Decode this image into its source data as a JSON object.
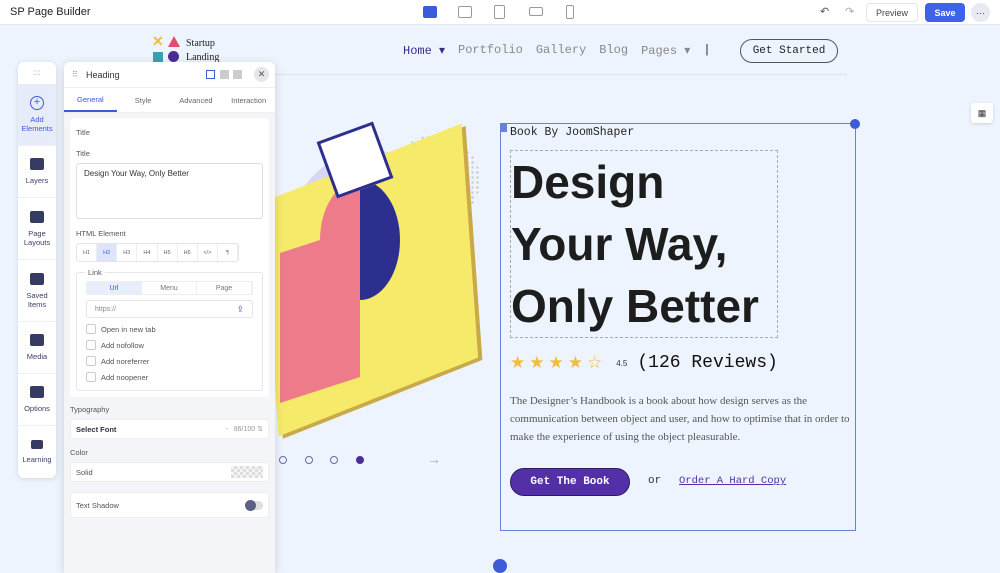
{
  "app": {
    "title": "SP Page Builder",
    "preview": "Preview",
    "save": "Save",
    "more": "···"
  },
  "devices": [
    "desktop",
    "tablet-landscape",
    "tablet",
    "mobile-landscape",
    "mobile"
  ],
  "site": {
    "logo": [
      "Startup",
      "Landing"
    ],
    "nav": [
      {
        "label": "Home ▾",
        "active": true
      },
      {
        "label": "Portfolio"
      },
      {
        "label": "Gallery"
      },
      {
        "label": "Blog"
      },
      {
        "label": "Pages ▾"
      }
    ],
    "divider": "|",
    "cta": "Get Started"
  },
  "sidebar": [
    {
      "label": "Add Elements",
      "icon": "plus-circle-icon",
      "active": true
    },
    {
      "label": "Layers",
      "icon": "layers-icon"
    },
    {
      "label": "Page Layouts",
      "icon": "layout-icon"
    },
    {
      "label": "Saved Items",
      "icon": "box-icon"
    },
    {
      "label": "Media",
      "icon": "media-icon"
    },
    {
      "label": "Options",
      "icon": "tools-icon"
    },
    {
      "label": "Learning",
      "icon": "book-icon"
    }
  ],
  "panel": {
    "title": "Heading",
    "tabs": [
      "General",
      "Style",
      "Advanced",
      "Interaction"
    ],
    "section": "Title",
    "title_label": "Title",
    "title_value": "Design Your Way, Only Better",
    "html_label": "HTML Element",
    "html_tags": [
      "H1",
      "H2",
      "H3",
      "H4",
      "H5",
      "H6",
      "</>",
      "¶"
    ],
    "html_selected": "H2",
    "link_label": "Link",
    "link_tabs": [
      "Url",
      "Menu",
      "Page"
    ],
    "url_placeholder": "https://",
    "checkboxes": [
      "Open in new tab",
      "Add nofollow",
      "Add noreferrer",
      "Add noopener"
    ],
    "typography_label": "Typography",
    "font": "Select Font",
    "font_sep": "-",
    "font_size": "86/100",
    "color_label": "Color",
    "color_value": "Solid",
    "shadow_label": "Text Shadow"
  },
  "hero": {
    "eyebrow": "Book By JoomShaper",
    "heading": "Design Your Way, Only Better",
    "rating": "4.5",
    "stars": 4.5,
    "reviews": "(126 Reviews)",
    "description": "The Designer’s Handbook is a book about how design serves as the communication between object and user, and how to optimise that in order to make the experience of using the object pleasurable.",
    "buy": "Get The Book",
    "or": "or",
    "hard_copy": "Order A Hard Copy",
    "slide_active": 4,
    "slide_count": 4
  },
  "colors": {
    "accent": "#3d5ad8",
    "brand": "#5330a8",
    "star": "#f0bd3c"
  }
}
